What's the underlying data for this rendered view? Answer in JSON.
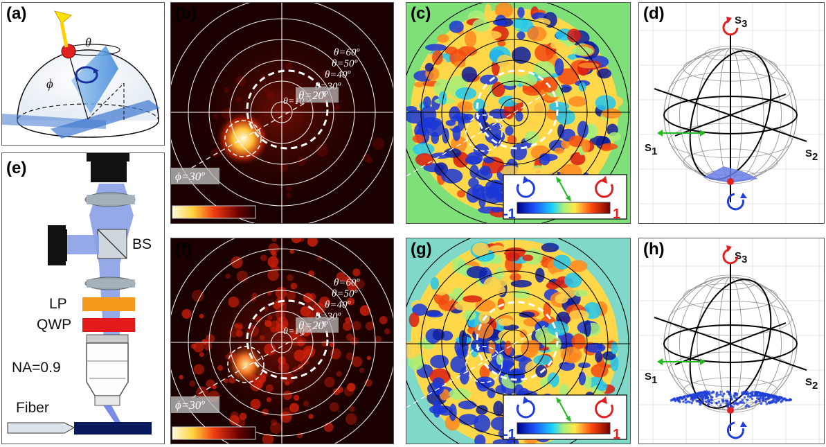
{
  "panels": {
    "a": {
      "label": "(a)",
      "theta": "θ",
      "phi": "ϕ"
    },
    "b": {
      "label": "(b)",
      "rings": [
        "θ=60º",
        "θ=50º",
        "θ=40º",
        "θ=30º",
        "θ=10º"
      ],
      "highlight_theta": "θ=20º",
      "phi_label": "ϕ=30º"
    },
    "c": {
      "label": "(c)",
      "cb_min": "-1",
      "cb_max": "1"
    },
    "d": {
      "label": "(d)",
      "s1": "S",
      "s2": "S",
      "s3": "S",
      "s1_sub": "1",
      "s2_sub": "2",
      "s3_sub": "3"
    },
    "e": {
      "label": "(e)",
      "bs": "BS",
      "lp": "LP",
      "qwp": "QWP",
      "na": "NA=0.9",
      "fiber": "Fiber"
    },
    "f": {
      "label": "(f)",
      "rings": [
        "θ=60º",
        "θ=50º",
        "θ=40º",
        "θ=30º",
        "θ=10º"
      ],
      "highlight_theta": "θ=20º",
      "phi_label": "ϕ=30º"
    },
    "g": {
      "label": "(g)",
      "cb_min": "-1",
      "cb_max": "1"
    },
    "h": {
      "label": "(h)",
      "s1": "S",
      "s2": "S",
      "s3": "S",
      "s1_sub": "1",
      "s2_sub": "2",
      "s3_sub": "3"
    }
  },
  "colors": {
    "red": "#e02020",
    "blue": "#1f3fd6",
    "green": "#22bb22",
    "bg_green": "#7fe07a",
    "hot_bg": "#1a0000"
  }
}
